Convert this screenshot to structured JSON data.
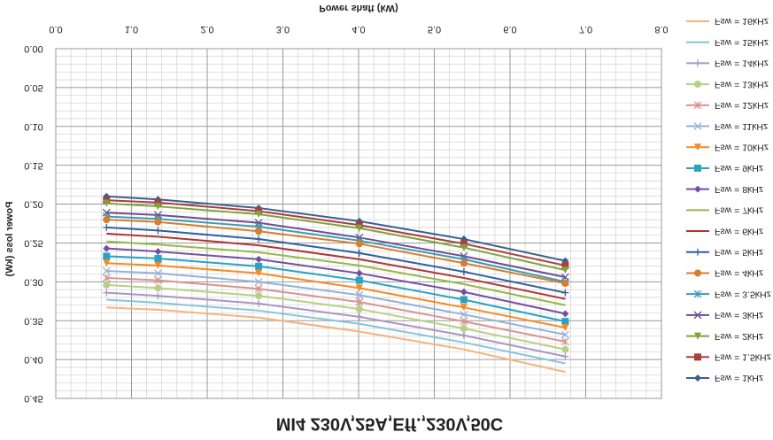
{
  "chart_data": {
    "type": "line",
    "title": "MI4 230V,25A,Eff.,230V,50C",
    "x_label": "Power shaft (kW)",
    "y_label": "Power loss (kW)",
    "flipped_vertically": true,
    "grid": true,
    "legend_position": "right",
    "x": [
      0.67,
      1.35,
      2.68,
      4.01,
      5.39,
      6.73
    ],
    "xlim": [
      0,
      8
    ],
    "xticks": [
      {
        "value": 0,
        "label": "0.0"
      },
      {
        "value": 1,
        "label": "1.0"
      },
      {
        "value": 2,
        "label": "2.0"
      },
      {
        "value": 3,
        "label": "3.0"
      },
      {
        "value": 4,
        "label": "4.0"
      },
      {
        "value": 5,
        "label": "5.0"
      },
      {
        "value": 6,
        "label": "6.0"
      },
      {
        "value": 7,
        "label": "7.0"
      },
      {
        "value": 8,
        "label": "8.0"
      }
    ],
    "ylim": [
      0,
      0.45
    ],
    "yticks": [
      {
        "value": 0,
        "label": "0.00"
      },
      {
        "value": 0.05,
        "label": "0.05"
      },
      {
        "value": 0.1,
        "label": "0.10"
      },
      {
        "value": 0.15,
        "label": "0.15"
      },
      {
        "value": 0.2,
        "label": "0.20"
      },
      {
        "value": 0.25,
        "label": "0.25"
      },
      {
        "value": 0.3,
        "label": "0.30"
      },
      {
        "value": 0.35,
        "label": "0.35"
      },
      {
        "value": 0.4,
        "label": "0.40"
      },
      {
        "value": 0.45,
        "label": "0.45"
      }
    ],
    "series": [
      {
        "name": "Fsw = 1kHz",
        "color": "#3a5f8f",
        "marker": "diamond",
        "values": [
          0.19,
          0.194,
          0.205,
          0.222,
          0.245,
          0.273
        ]
      },
      {
        "name": "Fsw = 1.5kHz",
        "color": "#a8403d",
        "marker": "square",
        "values": [
          0.195,
          0.198,
          0.209,
          0.227,
          0.251,
          0.279
        ]
      },
      {
        "name": "Fsw = 2kHz",
        "color": "#7fa33d",
        "marker": "triangle",
        "values": [
          0.199,
          0.203,
          0.213,
          0.231,
          0.256,
          0.285
        ]
      },
      {
        "name": "Fsw = 3kHz",
        "color": "#6b4f8e",
        "marker": "x",
        "values": [
          0.211,
          0.214,
          0.224,
          0.243,
          0.267,
          0.294
        ]
      },
      {
        "name": "Fsw = 3.5kHz",
        "color": "#3f9ab5",
        "marker": "star",
        "values": [
          0.216,
          0.219,
          0.229,
          0.247,
          0.271,
          0.3
        ]
      },
      {
        "name": "Fsw = 4kHz",
        "color": "#d97c2b",
        "marker": "circle",
        "values": [
          0.22,
          0.223,
          0.235,
          0.251,
          0.276,
          0.302
        ]
      },
      {
        "name": "Fsw = 5kHz",
        "color": "#2f5f9e",
        "marker": "plus",
        "values": [
          0.23,
          0.234,
          0.245,
          0.263,
          0.287,
          0.314
        ]
      },
      {
        "name": "Fsw = 6kHz",
        "color": "#b03530",
        "marker": "none",
        "values": [
          0.238,
          0.242,
          0.253,
          0.271,
          0.295,
          0.322
        ]
      },
      {
        "name": "Fsw = 7kHz",
        "color": "#96b84a",
        "marker": "none",
        "values": [
          0.248,
          0.252,
          0.262,
          0.279,
          0.303,
          0.33
        ]
      },
      {
        "name": "Fsw = 8kHz",
        "color": "#7450a0",
        "marker": "diamond",
        "values": [
          0.257,
          0.261,
          0.271,
          0.289,
          0.313,
          0.341
        ]
      },
      {
        "name": "Fsw = 9kHz",
        "color": "#2aa2c0",
        "marker": "square",
        "values": [
          0.267,
          0.27,
          0.28,
          0.298,
          0.323,
          0.351
        ]
      },
      {
        "name": "Fsw = 10kHz",
        "color": "#f58a22",
        "marker": "triangle",
        "values": [
          0.276,
          0.279,
          0.289,
          0.308,
          0.333,
          0.359
        ]
      },
      {
        "name": "Fsw = 11kHz",
        "color": "#93b1d8",
        "marker": "x",
        "values": [
          0.286,
          0.289,
          0.3,
          0.317,
          0.342,
          0.368
        ]
      },
      {
        "name": "Fsw = 12kHz",
        "color": "#d89391",
        "marker": "star",
        "values": [
          0.295,
          0.298,
          0.309,
          0.326,
          0.351,
          0.377
        ]
      },
      {
        "name": "Fsw = 13kHz",
        "color": "#b7cf87",
        "marker": "circle",
        "values": [
          0.304,
          0.308,
          0.318,
          0.335,
          0.36,
          0.387
        ]
      },
      {
        "name": "Fsw = 14kHz",
        "color": "#a895c2",
        "marker": "plus",
        "values": [
          0.314,
          0.318,
          0.328,
          0.345,
          0.369,
          0.396
        ]
      },
      {
        "name": "Fsw = 15kHz",
        "color": "#86c4d8",
        "marker": "none",
        "values": [
          0.323,
          0.327,
          0.337,
          0.354,
          0.378,
          0.405
        ]
      },
      {
        "name": "Fsw = 16kHz",
        "color": "#f7b27a",
        "marker": "none",
        "values": [
          0.333,
          0.336,
          0.346,
          0.364,
          0.387,
          0.416
        ]
      }
    ]
  }
}
